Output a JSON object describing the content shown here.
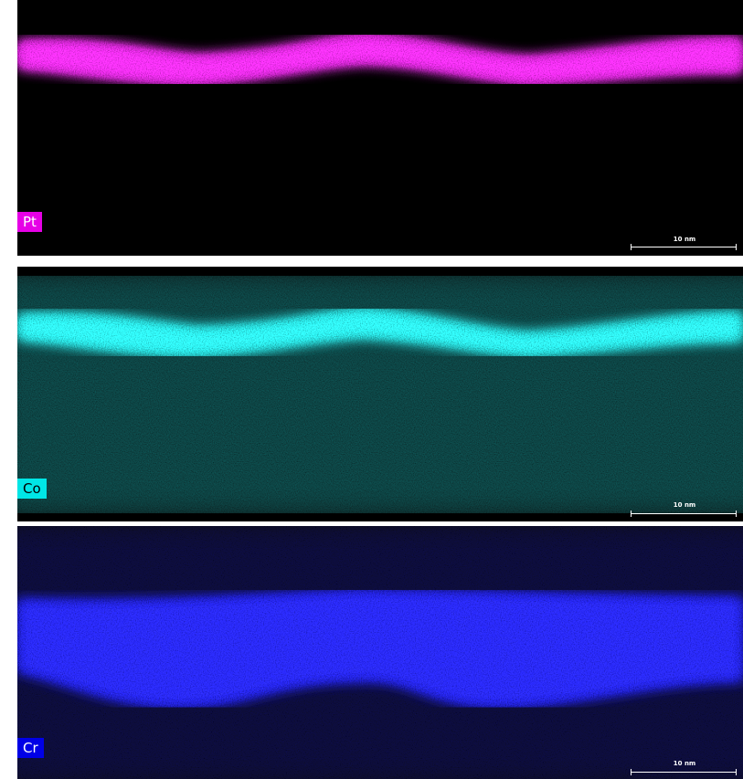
{
  "panels": [
    {
      "label": "Pt",
      "scale_bar": "10 nm"
    },
    {
      "label": "Co",
      "scale_bar": "10 nm"
    },
    {
      "label": "Cr",
      "scale_bar": "10 nm"
    }
  ]
}
